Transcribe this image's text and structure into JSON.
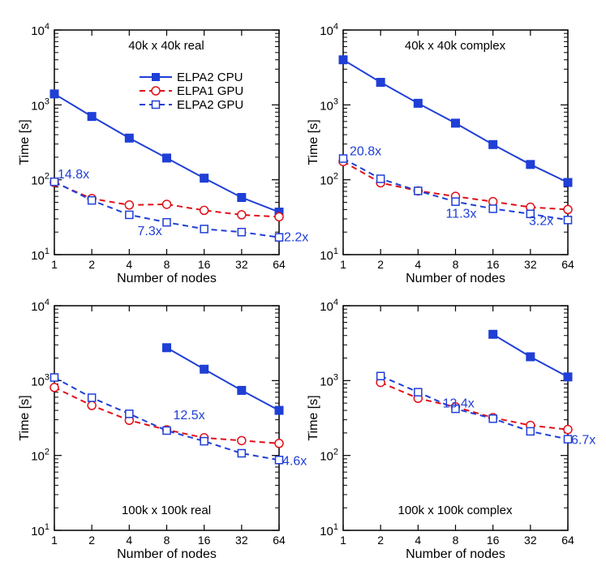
{
  "chart_data": [
    {
      "type": "line",
      "title": "40k x 40k real",
      "xlabel": "Number of nodes",
      "ylabel": "Time [s]",
      "x": [
        1,
        2,
        4,
        8,
        16,
        32,
        64
      ],
      "xscale": "log2",
      "yscale": "log10",
      "ylim": [
        10,
        10000
      ],
      "grid": false,
      "legend": "top-right",
      "series": [
        {
          "name": "ELPA2 CPU",
          "style": "solid",
          "marker": "filled-square",
          "color": "#1f3fd6",
          "values": [
            1400,
            700,
            360,
            195,
            105,
            58,
            37
          ]
        },
        {
          "name": "ELPA1 GPU",
          "style": "dashed",
          "marker": "open-circle",
          "color": "#e0101a",
          "values": [
            92,
            56,
            46,
            47,
            39,
            34,
            32
          ]
        },
        {
          "name": "ELPA2 GPU",
          "style": "dashed",
          "marker": "open-square",
          "color": "#1f3fd6",
          "values": [
            94,
            53,
            34,
            27,
            22,
            20,
            17
          ]
        }
      ],
      "annotations": [
        {
          "text": "14.8x",
          "x": 1,
          "y": 94
        },
        {
          "text": "7.3x",
          "x": 8,
          "y": 27
        },
        {
          "text": "2.2x",
          "x": 64,
          "y": 17
        }
      ]
    },
    {
      "type": "line",
      "title": "40k x 40k complex",
      "xlabel": "Number of nodes",
      "ylabel": "Time [s]",
      "x": [
        1,
        2,
        4,
        8,
        16,
        32,
        64
      ],
      "xscale": "log2",
      "yscale": "log10",
      "ylim": [
        10,
        10000
      ],
      "grid": false,
      "series": [
        {
          "name": "ELPA2 CPU",
          "style": "solid",
          "marker": "filled-square",
          "color": "#1f3fd6",
          "values": [
            4000,
            2000,
            1050,
            570,
            295,
            160,
            92
          ]
        },
        {
          "name": "ELPA1 GPU",
          "style": "dashed",
          "marker": "open-circle",
          "color": "#e0101a",
          "values": [
            175,
            91,
            71,
            60,
            51,
            43,
            40
          ]
        },
        {
          "name": "ELPA2 GPU",
          "style": "dashed",
          "marker": "open-square",
          "color": "#1f3fd6",
          "values": [
            192,
            103,
            71,
            51,
            41,
            35,
            29
          ]
        }
      ],
      "annotations": [
        {
          "text": "20.8x",
          "x": 1,
          "y": 192
        },
        {
          "text": "11.3x",
          "x": 8,
          "y": 51
        },
        {
          "text": "3.2x",
          "x": 64,
          "y": 29
        }
      ]
    },
    {
      "type": "line",
      "title": "100k x 100k real",
      "xlabel": "Number of nodes",
      "ylabel": "Time [s]",
      "x": [
        1,
        2,
        4,
        8,
        16,
        32,
        64
      ],
      "xscale": "log2",
      "yscale": "log10",
      "ylim": [
        10,
        10000
      ],
      "grid": false,
      "series": [
        {
          "name": "ELPA2 CPU",
          "style": "solid",
          "marker": "filled-square",
          "color": "#1f3fd6",
          "values": [
            null,
            null,
            null,
            2750,
            1420,
            740,
            400
          ]
        },
        {
          "name": "ELPA1 GPU",
          "style": "dashed",
          "marker": "open-circle",
          "color": "#e0101a",
          "values": [
            810,
            465,
            295,
            220,
            172,
            158,
            145
          ]
        },
        {
          "name": "ELPA2 GPU",
          "style": "dashed",
          "marker": "open-square",
          "color": "#1f3fd6",
          "values": [
            1100,
            590,
            360,
            215,
            155,
            107,
            87
          ]
        }
      ],
      "annotations": [
        {
          "text": "12.5x",
          "x": 8,
          "y": 215
        },
        {
          "text": "4.6x",
          "x": 64,
          "y": 87
        }
      ]
    },
    {
      "type": "line",
      "title": "100k x 100k complex",
      "xlabel": "Number of nodes",
      "ylabel": "Time [s]",
      "x": [
        1,
        2,
        4,
        8,
        16,
        32,
        64
      ],
      "xscale": "log2",
      "yscale": "log10",
      "ylim": [
        10,
        10000
      ],
      "grid": false,
      "series": [
        {
          "name": "ELPA2 CPU",
          "style": "solid",
          "marker": "filled-square",
          "color": "#1f3fd6",
          "values": [
            null,
            null,
            null,
            null,
            4150,
            2080,
            1120
          ]
        },
        {
          "name": "ELPA1 GPU",
          "style": "dashed",
          "marker": "open-circle",
          "color": "#e0101a",
          "values": [
            null,
            945,
            580,
            445,
            320,
            252,
            222
          ]
        },
        {
          "name": "ELPA2 GPU",
          "style": "dashed",
          "marker": "open-square",
          "color": "#1f3fd6",
          "values": [
            null,
            1150,
            700,
            420,
            310,
            210,
            165
          ]
        }
      ],
      "annotations": [
        {
          "text": "13.4x",
          "x": 16,
          "y": 310
        },
        {
          "text": "6.7x",
          "x": 64,
          "y": 165
        }
      ]
    }
  ]
}
